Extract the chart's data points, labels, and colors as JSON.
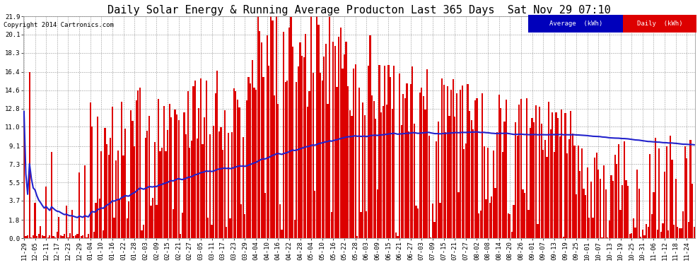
{
  "title": "Daily Solar Energy & Running Average Producton Last 365 Days  Sat Nov 29 07:10",
  "copyright": "Copyright 2014 Cartronics.com",
  "yticks": [
    0.0,
    1.8,
    3.7,
    5.5,
    7.3,
    9.1,
    11.0,
    12.8,
    14.6,
    16.4,
    18.3,
    20.1,
    21.9
  ],
  "ylim": [
    0.0,
    21.9
  ],
  "bar_color": "#dd0000",
  "avg_line_color": "#2222cc",
  "background_color": "#ffffff",
  "grid_color": "#999999",
  "legend_avg_bg": "#0000bb",
  "legend_daily_bg": "#dd0000",
  "legend_avg_text": "Average  (kWh)",
  "legend_daily_text": "Daily  (kWh)",
  "title_fontsize": 11,
  "copyright_fontsize": 6.5,
  "tick_label_fontsize": 6.5
}
